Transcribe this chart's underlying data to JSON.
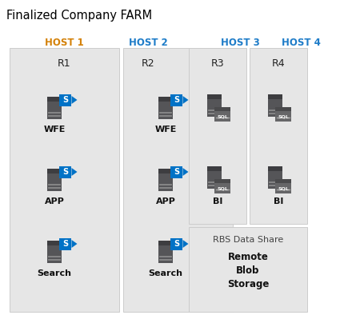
{
  "title": "Finalized Company FARM",
  "title_color": "#000000",
  "title_fontsize": 10.5,
  "bg_color": "#ffffff",
  "panel_color": "#e6e6e6",
  "panel_edge": "#cccccc",
  "host_color_1": "#d4820a",
  "host_color_2": "#1e7cc8",
  "host_color_3": "#1e7cc8",
  "host_color_4": "#1e7cc8",
  "host_labels": [
    "HOST 1",
    "HOST 2",
    "HOST 3",
    "HOST 4"
  ],
  "rack_labels": [
    "R1",
    "R2",
    "R3",
    "R4"
  ],
  "server_dark": "#555558",
  "server_top": "#3d3d40",
  "server_line": "#8a8a8a",
  "sql_gray": "#666668",
  "sql_gray_top": "#4a4a4c",
  "sp_blue": "#0072c6",
  "sp_blue2": "#004f8b",
  "label_fontsize": 8,
  "host_fontsize": 8.5,
  "rack_fontsize": 9,
  "figw": 4.31,
  "figh": 4.09,
  "dpi": 100
}
